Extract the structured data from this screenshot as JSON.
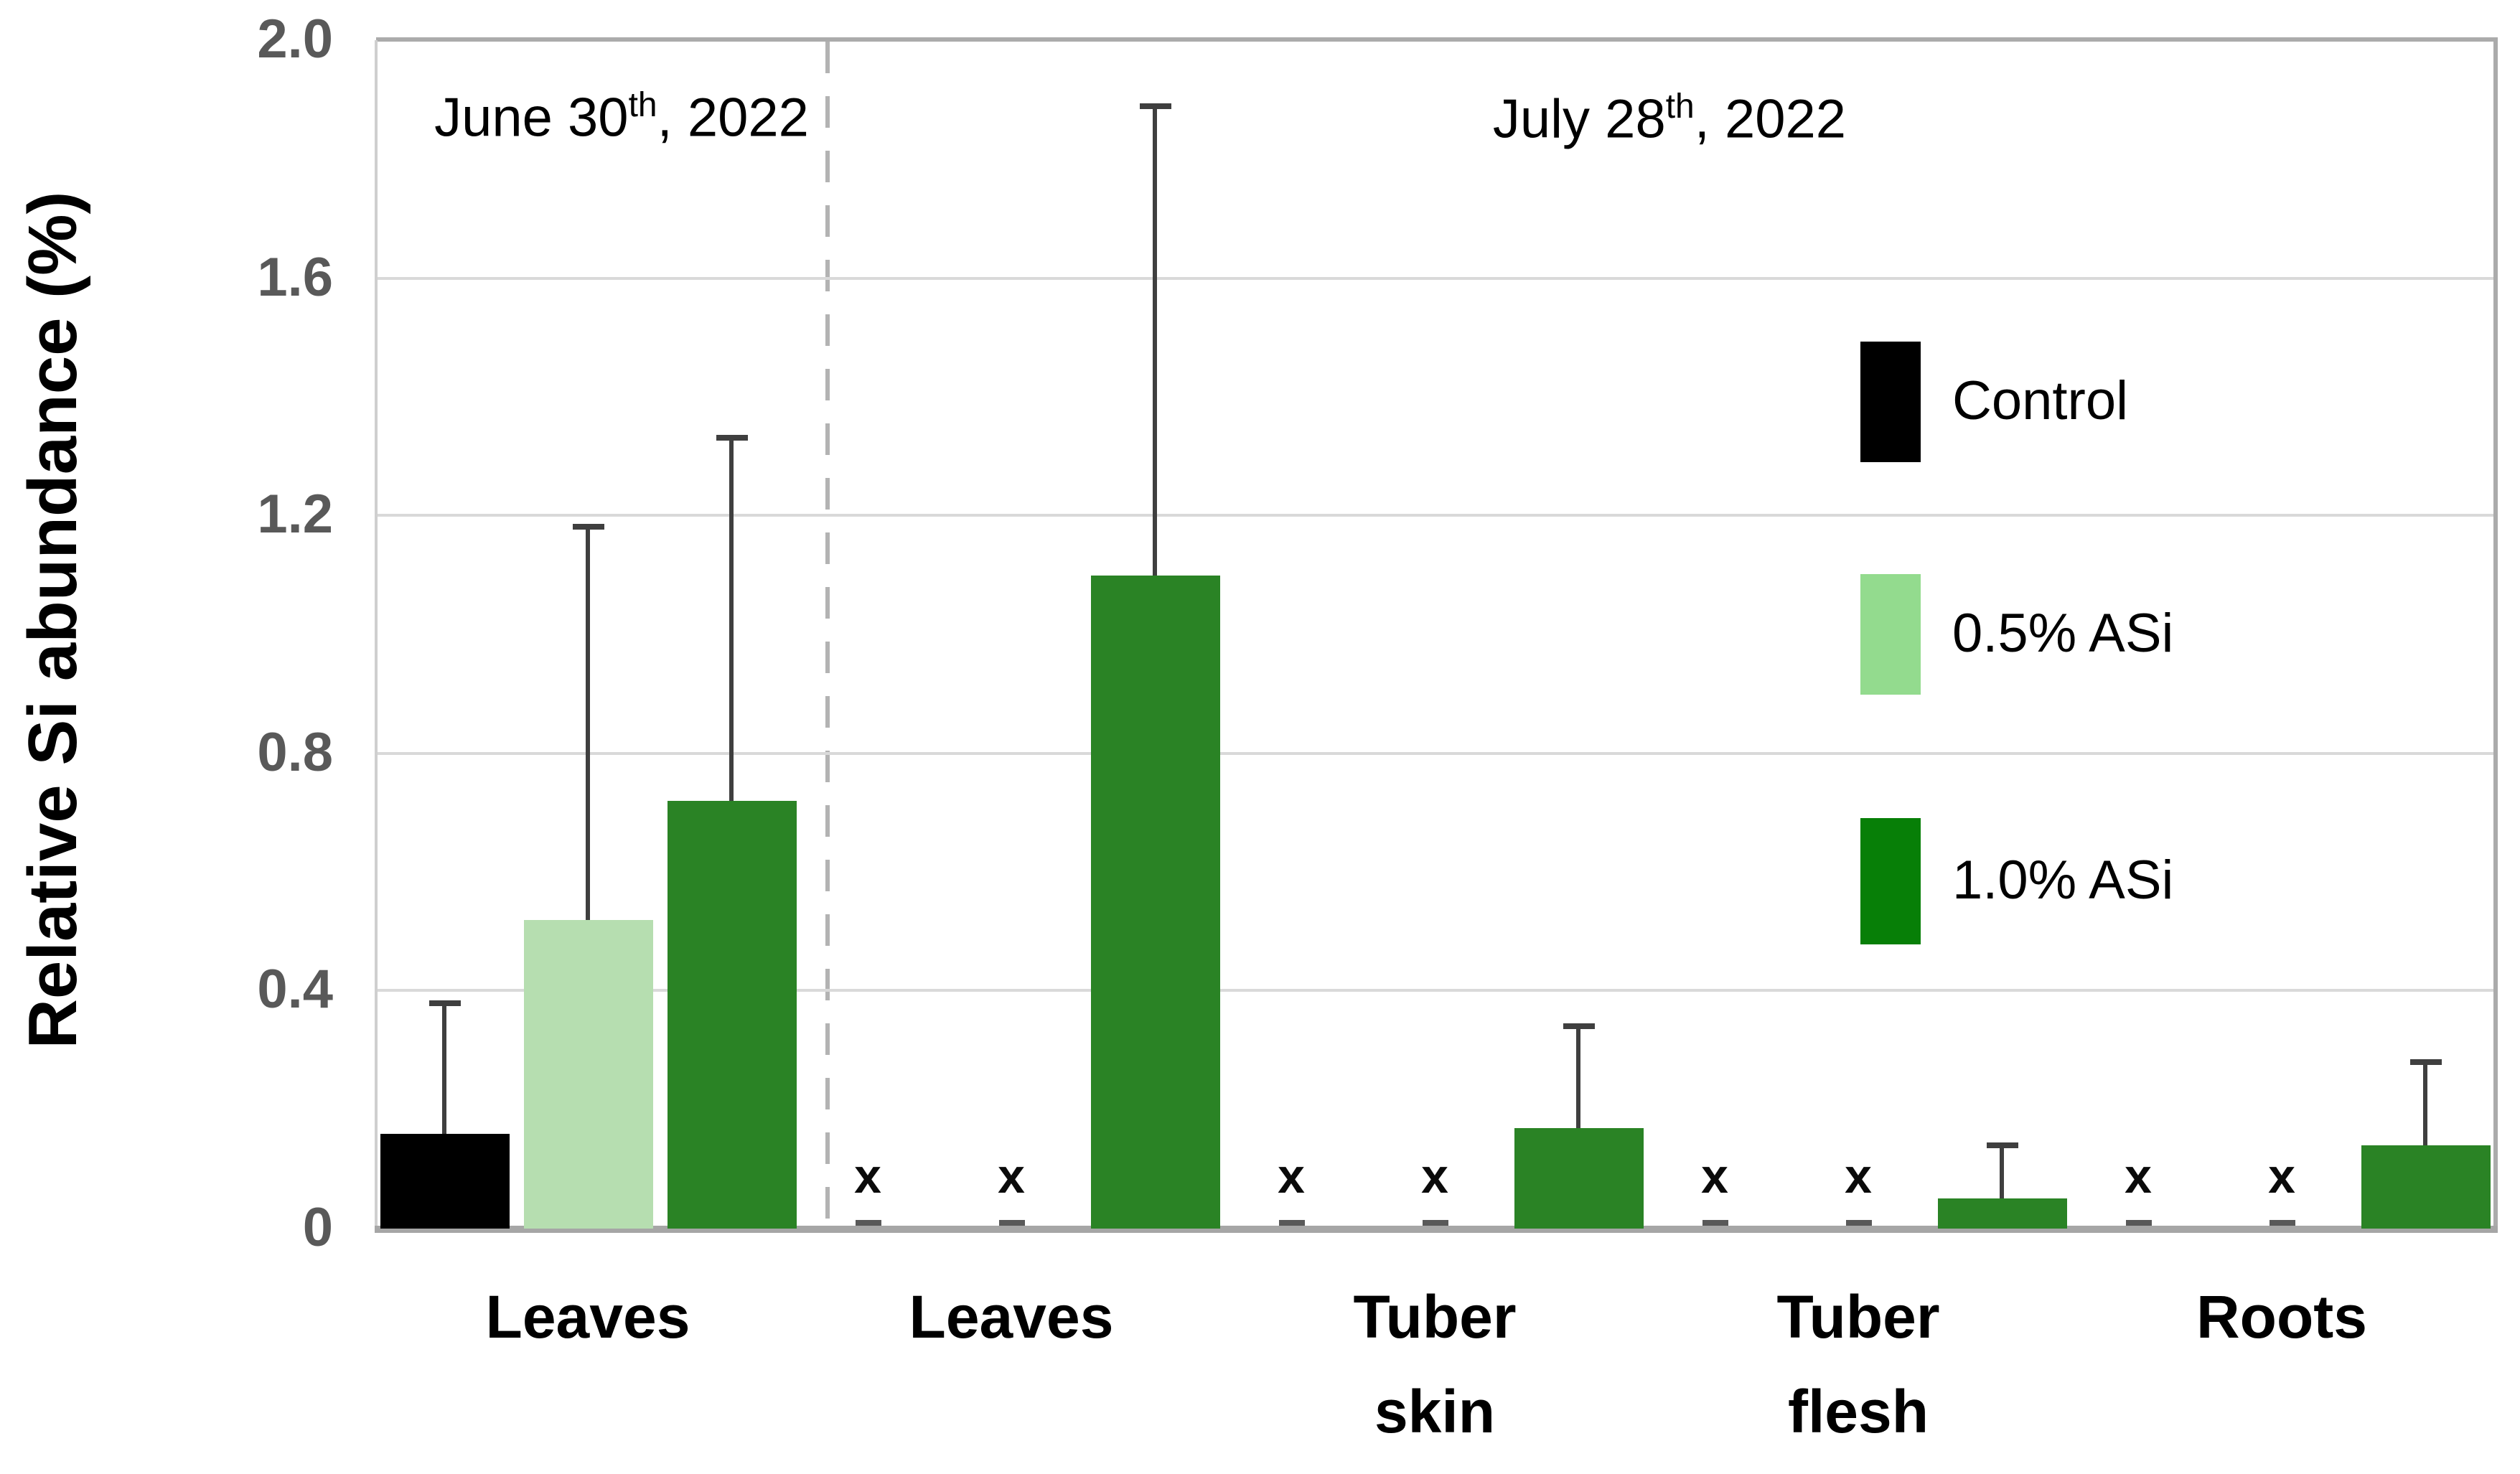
{
  "y_axis": {
    "title": "Relative Si abundance (%)",
    "tick_labels": [
      "2.0",
      "1.6",
      "1.2",
      "0.8",
      "0.4",
      "0"
    ],
    "min": 0,
    "max": 2.0,
    "step": 0.4
  },
  "annotations": {
    "left": {
      "pre": "June 30",
      "sup": "th",
      "post": ", 2022"
    },
    "right": {
      "pre": "July 28",
      "sup": "th",
      "post": ", 2022"
    }
  },
  "legend": {
    "items": [
      {
        "label": "Control",
        "color": "#000000"
      },
      {
        "label": "0.5% ASi",
        "color": "#93DB8E"
      },
      {
        "label": "1.0% ASi",
        "color": "#077F07"
      }
    ]
  },
  "x_axis": {
    "categories": [
      {
        "lines": [
          "Leaves"
        ]
      },
      {
        "lines": [
          "Leaves"
        ]
      },
      {
        "lines": [
          "Tuber",
          "skin"
        ]
      },
      {
        "lines": [
          "Tuber",
          "flesh"
        ]
      },
      {
        "lines": [
          "Roots"
        ]
      }
    ]
  },
  "zero_marker_char": "x",
  "colors": {
    "bar_control": "#000000",
    "bar_light_green": "#B6DEB0",
    "bar_dark_green": "#2A8325",
    "gridline": "#D9D9D9",
    "frame": "#ABABAB",
    "baseline": "#A6A6A6",
    "divider_dash": "#B3B3B3",
    "tick_text": "#595959",
    "error_bar": "#3F3F3F"
  },
  "chart_data": {
    "type": "bar",
    "title": "",
    "xlabel": "",
    "ylabel": "Relative Si abundance (%)",
    "ylim": [
      0,
      2.0
    ],
    "ytick_step": 0.4,
    "grid": "horizontal",
    "legend_position": "inside-right",
    "categories": [
      "Leaves",
      "Leaves",
      "Tuber skin",
      "Tuber flesh",
      "Roots"
    ],
    "group_annotations": [
      "June 30th, 2022",
      "July 28th, 2022"
    ],
    "divider_after_category": 1,
    "series": [
      {
        "name": "Control",
        "color": "#000000",
        "values": [
          0.16,
          0,
          0,
          0,
          0
        ],
        "error_plus": [
          0.22,
          null,
          null,
          null,
          null
        ]
      },
      {
        "name": "0.5% ASi",
        "color": "#B6DEB0",
        "values": [
          0.52,
          0,
          0,
          0,
          0
        ],
        "error_plus": [
          0.66,
          null,
          null,
          null,
          null
        ]
      },
      {
        "name": "1.0% ASi",
        "color": "#2A8325",
        "values": [
          0.72,
          1.1,
          0.17,
          0.05,
          0.14
        ],
        "error_plus": [
          0.61,
          0.79,
          0.17,
          0.09,
          0.14
        ]
      }
    ]
  }
}
